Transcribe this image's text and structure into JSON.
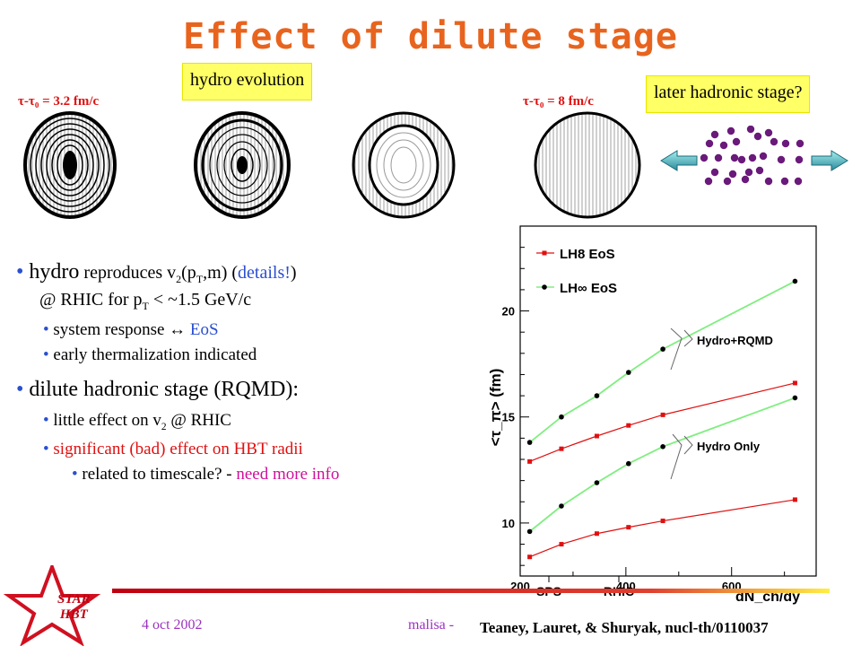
{
  "title": "Effect of dilute stage",
  "labels": {
    "hydro_evolution": "hydro evolution",
    "later_hadronic": "later hadronic stage?",
    "tau_start": "τ-τ₀ = 3.2 fm/c",
    "tau_end": "τ-τ₀ = 8 fm/c"
  },
  "bullets": {
    "b1_main": "hydro",
    "b1_rest": " reproduces v",
    "b1_sub": "2",
    "b1_mid": "(p",
    "b1_sub2": "T",
    "b1_end": ",m) (",
    "b1_details": "details!",
    "b1_close": ")",
    "b1_line2a": "@ RHIC for p",
    "b1_line2sub": "T",
    "b1_line2b": " < ~1.5 GeV/c",
    "b1_s1a": "system response ",
    "b1_s1arrow": "↔",
    "b1_s1b": " EoS",
    "b1_s2": "early thermalization indicated",
    "b2_main": "dilute hadronic stage (RQMD):",
    "b2_s1a": "little effect on v",
    "b2_s1sub": "2",
    "b2_s1b": " @ RHIC",
    "b2_s2": "significant (bad) effect on HBT radii",
    "b2_s3a": "related to timescale? - ",
    "b2_s3b": "need more info"
  },
  "footer": {
    "date": "4 oct 2002",
    "author": "malisa -",
    "citation": "Teaney, Lauret, & Shuryak, nucl-th/0110037",
    "star_line1": "STAR",
    "star_line2": "HBT"
  },
  "colors": {
    "title": "#e8641e",
    "bullet": "#2a4fd0",
    "red_series": "#e01010",
    "green_line": "#80ee80",
    "particle": "#6a1a7a",
    "arrow": "#2a8a9a"
  },
  "chart_data": {
    "type": "line",
    "xlabel": "dN_ch/dy",
    "ylabel": "<τ_π> (fm)",
    "xlim": [
      200,
      760
    ],
    "ylim": [
      7.5,
      24
    ],
    "x_ticks": [
      "200",
      "400",
      "600"
    ],
    "y_ticks": [
      "10",
      "15",
      "20"
    ],
    "x_annotations": [
      "SPS",
      "RHIC"
    ],
    "annotations": [
      "Hydro+RQMD",
      "Hydro Only"
    ],
    "legend": [
      "LH8 EoS",
      "LH∞ EoS"
    ],
    "series": [
      {
        "name": "LH8 EoS",
        "group": "Hydro+RQMD",
        "marker": "square",
        "color": "#e01010",
        "x": [
          218,
          278,
          345,
          405,
          470,
          720
        ],
        "y": [
          12.9,
          13.5,
          14.1,
          14.6,
          15.1,
          16.6
        ]
      },
      {
        "name": "LH∞ EoS",
        "group": "Hydro+RQMD",
        "marker": "circle",
        "color": "#000000",
        "x": [
          218,
          278,
          345,
          405,
          470,
          720
        ],
        "y": [
          13.8,
          15.0,
          16.0,
          17.1,
          18.2,
          21.4
        ]
      },
      {
        "name": "LH8 EoS",
        "group": "Hydro Only",
        "marker": "square",
        "color": "#e01010",
        "x": [
          218,
          278,
          345,
          405,
          470,
          720
        ],
        "y": [
          8.4,
          9.0,
          9.5,
          9.8,
          10.1,
          11.1
        ]
      },
      {
        "name": "LH∞ EoS",
        "group": "Hydro Only",
        "marker": "circle",
        "color": "#000000",
        "x": [
          218,
          278,
          345,
          405,
          470,
          720
        ],
        "y": [
          9.6,
          10.8,
          11.9,
          12.8,
          13.6,
          15.9
        ]
      }
    ]
  }
}
